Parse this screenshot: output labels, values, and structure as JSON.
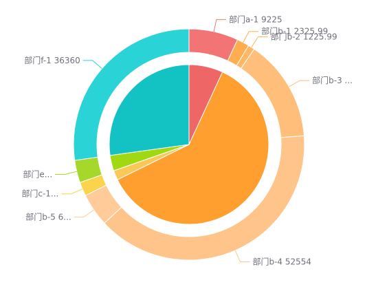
{
  "chart_data": {
    "type": "pie",
    "variant": "nested-donut",
    "inner": {
      "slices": [
        {
          "name": "部门a",
          "value": 9225,
          "color": "#ee6666"
        },
        {
          "name": "部门b",
          "value": 81356,
          "color": "#ff9f30"
        },
        {
          "name": "部门c",
          "value": 2600,
          "color": "#fac858"
        },
        {
          "name": "部门e",
          "value": 4200,
          "color": "#a0d911"
        },
        {
          "name": "部门f",
          "value": 36360,
          "color": "#13c2c2"
        }
      ]
    },
    "outer": {
      "slices": [
        {
          "name": "部门a-1",
          "value": 9225,
          "label": "部门a-1 9225",
          "color": "#f27474"
        },
        {
          "name": "部门b-1",
          "value": 2325.99,
          "label": "部门b-1 2325.99",
          "color": "#ffad4f"
        },
        {
          "name": "部门b-2",
          "value": 1225.99,
          "label": "部门b-2 1225.99",
          "color": "#ffb766"
        },
        {
          "name": "部门b-3",
          "value": 19050,
          "label": "部门b-3 ...",
          "color": "#ffbe7a"
        },
        {
          "name": "部门b-4",
          "value": 52554,
          "label": "部门b-4 52554",
          "color": "#ffc48a"
        },
        {
          "name": "部门b-5",
          "value": 6200,
          "label": "部门b-5 6...",
          "color": "#ffcb99"
        },
        {
          "name": "部门c-1",
          "value": 2600,
          "label": "部门c-1...",
          "color": "#fcd34d"
        },
        {
          "name": "部门e",
          "value": 4200,
          "label": "部门e...",
          "color": "#a4d82b"
        },
        {
          "name": "部门f-1",
          "value": 36360,
          "label": "部门f-1 36360",
          "color": "#29d3d6"
        }
      ]
    },
    "label_line_color": "match-slice",
    "grid": false,
    "legend": "none"
  }
}
